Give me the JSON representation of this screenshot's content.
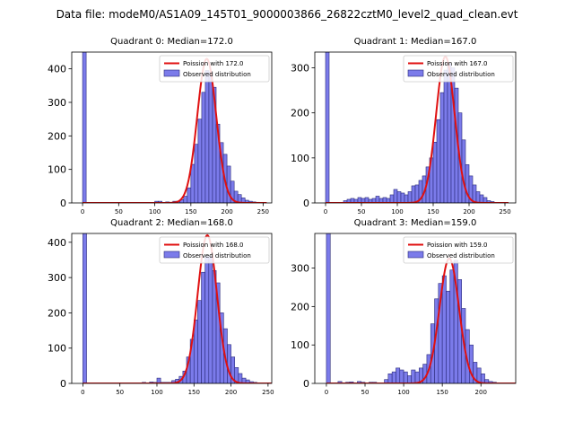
{
  "suptitle": "Data file: modeM0/AS1A09_145T01_9000003866_26822cztM0_level2_quad_clean.evt",
  "colors": {
    "bar_fill": "#7b7bea",
    "bar_edge": "#2a2a7a",
    "fit_line": "#e01010",
    "axis": "#000000"
  },
  "chart_data": [
    {
      "type": "bar",
      "id": "q0",
      "title": "Quadrant 0: Median=172.0",
      "legend": {
        "line": "Poission with 172.0",
        "bars": "Observed distribution",
        "placement": "top-right"
      },
      "xlim": [
        -15,
        262
      ],
      "ylim": [
        0,
        450
      ],
      "xticks": [
        0,
        50,
        100,
        150,
        200,
        250
      ],
      "yticks": [
        0,
        100,
        200,
        300,
        400
      ],
      "bin_width": 5,
      "poisson_mean": 172.0,
      "poisson_peak": 430,
      "bins": [
        {
          "x": 0,
          "v": 450
        },
        {
          "x": 100,
          "v": 5
        },
        {
          "x": 105,
          "v": 5
        },
        {
          "x": 115,
          "v": 3
        },
        {
          "x": 125,
          "v": 5
        },
        {
          "x": 130,
          "v": 5
        },
        {
          "x": 135,
          "v": 10
        },
        {
          "x": 140,
          "v": 20
        },
        {
          "x": 145,
          "v": 45
        },
        {
          "x": 150,
          "v": 115
        },
        {
          "x": 155,
          "v": 175
        },
        {
          "x": 160,
          "v": 250
        },
        {
          "x": 165,
          "v": 330
        },
        {
          "x": 170,
          "v": 395
        },
        {
          "x": 175,
          "v": 390
        },
        {
          "x": 180,
          "v": 345
        },
        {
          "x": 185,
          "v": 235
        },
        {
          "x": 190,
          "v": 180
        },
        {
          "x": 195,
          "v": 145
        },
        {
          "x": 200,
          "v": 110
        },
        {
          "x": 205,
          "v": 65
        },
        {
          "x": 210,
          "v": 35
        },
        {
          "x": 215,
          "v": 25
        },
        {
          "x": 220,
          "v": 15
        },
        {
          "x": 225,
          "v": 8
        },
        {
          "x": 230,
          "v": 5
        },
        {
          "x": 235,
          "v": 3
        },
        {
          "x": 240,
          "v": 2
        }
      ]
    },
    {
      "type": "bar",
      "id": "q1",
      "title": "Quadrant 1: Median=167.0",
      "legend": {
        "line": "Poission with 167.0",
        "bars": "Observed distribution",
        "placement": "top-right"
      },
      "xlim": [
        -15,
        265
      ],
      "ylim": [
        0,
        335
      ],
      "xticks": [
        0,
        50,
        100,
        150,
        200,
        250
      ],
      "yticks": [
        0,
        100,
        200,
        300
      ],
      "bin_width": 5,
      "poisson_mean": 167.0,
      "poisson_peak": 325,
      "bins": [
        {
          "x": 0,
          "v": 335
        },
        {
          "x": 25,
          "v": 5
        },
        {
          "x": 30,
          "v": 8
        },
        {
          "x": 35,
          "v": 10
        },
        {
          "x": 40,
          "v": 8
        },
        {
          "x": 45,
          "v": 12
        },
        {
          "x": 50,
          "v": 10
        },
        {
          "x": 55,
          "v": 12
        },
        {
          "x": 60,
          "v": 8
        },
        {
          "x": 65,
          "v": 10
        },
        {
          "x": 70,
          "v": 15
        },
        {
          "x": 75,
          "v": 10
        },
        {
          "x": 80,
          "v": 12
        },
        {
          "x": 85,
          "v": 10
        },
        {
          "x": 90,
          "v": 18
        },
        {
          "x": 95,
          "v": 30
        },
        {
          "x": 100,
          "v": 25
        },
        {
          "x": 105,
          "v": 22
        },
        {
          "x": 110,
          "v": 18
        },
        {
          "x": 115,
          "v": 25
        },
        {
          "x": 120,
          "v": 38
        },
        {
          "x": 125,
          "v": 40
        },
        {
          "x": 130,
          "v": 50
        },
        {
          "x": 135,
          "v": 60
        },
        {
          "x": 140,
          "v": 80
        },
        {
          "x": 145,
          "v": 100
        },
        {
          "x": 150,
          "v": 135
        },
        {
          "x": 155,
          "v": 185
        },
        {
          "x": 160,
          "v": 245
        },
        {
          "x": 165,
          "v": 295
        },
        {
          "x": 170,
          "v": 310
        },
        {
          "x": 175,
          "v": 300
        },
        {
          "x": 180,
          "v": 255
        },
        {
          "x": 185,
          "v": 200
        },
        {
          "x": 190,
          "v": 140
        },
        {
          "x": 195,
          "v": 85
        },
        {
          "x": 200,
          "v": 60
        },
        {
          "x": 205,
          "v": 40
        },
        {
          "x": 210,
          "v": 25
        },
        {
          "x": 215,
          "v": 18
        },
        {
          "x": 220,
          "v": 12
        },
        {
          "x": 225,
          "v": 5
        },
        {
          "x": 230,
          "v": 3
        }
      ]
    },
    {
      "type": "bar",
      "id": "q2",
      "title": "Quadrant 2: Median=168.0",
      "legend": {
        "line": "Poission with 168.0",
        "bars": "Observed distribution",
        "placement": "top-right"
      },
      "xlim": [
        -15,
        255
      ],
      "ylim": [
        0,
        425
      ],
      "xticks": [
        0,
        50,
        100,
        150,
        200,
        250
      ],
      "yticks": [
        0,
        100,
        200,
        300,
        400
      ],
      "bin_width": 5,
      "poisson_mean": 168.0,
      "poisson_peak": 420,
      "bins": [
        {
          "x": 0,
          "v": 425
        },
        {
          "x": 80,
          "v": 3
        },
        {
          "x": 90,
          "v": 4
        },
        {
          "x": 95,
          "v": 3
        },
        {
          "x": 100,
          "v": 15
        },
        {
          "x": 105,
          "v": 3
        },
        {
          "x": 110,
          "v": 3
        },
        {
          "x": 115,
          "v": 3
        },
        {
          "x": 120,
          "v": 8
        },
        {
          "x": 125,
          "v": 12
        },
        {
          "x": 130,
          "v": 20
        },
        {
          "x": 135,
          "v": 35
        },
        {
          "x": 140,
          "v": 75
        },
        {
          "x": 145,
          "v": 125
        },
        {
          "x": 150,
          "v": 180
        },
        {
          "x": 155,
          "v": 235
        },
        {
          "x": 160,
          "v": 315
        },
        {
          "x": 165,
          "v": 360
        },
        {
          "x": 170,
          "v": 360
        },
        {
          "x": 175,
          "v": 320
        },
        {
          "x": 180,
          "v": 285
        },
        {
          "x": 185,
          "v": 200
        },
        {
          "x": 190,
          "v": 155
        },
        {
          "x": 195,
          "v": 110
        },
        {
          "x": 200,
          "v": 75
        },
        {
          "x": 205,
          "v": 45
        },
        {
          "x": 210,
          "v": 28
        },
        {
          "x": 215,
          "v": 15
        },
        {
          "x": 220,
          "v": 10
        },
        {
          "x": 225,
          "v": 5
        },
        {
          "x": 230,
          "v": 3
        }
      ]
    },
    {
      "type": "bar",
      "id": "q3",
      "title": "Quadrant 3: Median=159.0",
      "legend": {
        "line": "Poission with 159.0",
        "bars": "Observed distribution",
        "placement": "top-right"
      },
      "xlim": [
        -15,
        245
      ],
      "ylim": [
        0,
        390
      ],
      "xticks": [
        0,
        50,
        100,
        150,
        200
      ],
      "yticks": [
        0,
        100,
        200,
        300
      ],
      "bin_width": 5,
      "poisson_mean": 159.0,
      "poisson_peak": 325,
      "bins": [
        {
          "x": 0,
          "v": 390
        },
        {
          "x": 15,
          "v": 5
        },
        {
          "x": 25,
          "v": 3
        },
        {
          "x": 30,
          "v": 4
        },
        {
          "x": 40,
          "v": 5
        },
        {
          "x": 45,
          "v": 3
        },
        {
          "x": 55,
          "v": 3
        },
        {
          "x": 60,
          "v": 3
        },
        {
          "x": 75,
          "v": 10
        },
        {
          "x": 80,
          "v": 25
        },
        {
          "x": 85,
          "v": 30
        },
        {
          "x": 90,
          "v": 40
        },
        {
          "x": 95,
          "v": 35
        },
        {
          "x": 100,
          "v": 30
        },
        {
          "x": 105,
          "v": 20
        },
        {
          "x": 110,
          "v": 35
        },
        {
          "x": 115,
          "v": 30
        },
        {
          "x": 120,
          "v": 40
        },
        {
          "x": 125,
          "v": 50
        },
        {
          "x": 130,
          "v": 75
        },
        {
          "x": 135,
          "v": 155
        },
        {
          "x": 140,
          "v": 220
        },
        {
          "x": 145,
          "v": 260
        },
        {
          "x": 150,
          "v": 280
        },
        {
          "x": 155,
          "v": 240
        },
        {
          "x": 160,
          "v": 295
        },
        {
          "x": 165,
          "v": 320
        },
        {
          "x": 170,
          "v": 270
        },
        {
          "x": 175,
          "v": 195
        },
        {
          "x": 180,
          "v": 140
        },
        {
          "x": 185,
          "v": 100
        },
        {
          "x": 190,
          "v": 55
        },
        {
          "x": 195,
          "v": 40
        },
        {
          "x": 200,
          "v": 25
        },
        {
          "x": 205,
          "v": 10
        },
        {
          "x": 210,
          "v": 5
        },
        {
          "x": 215,
          "v": 3
        }
      ]
    }
  ]
}
